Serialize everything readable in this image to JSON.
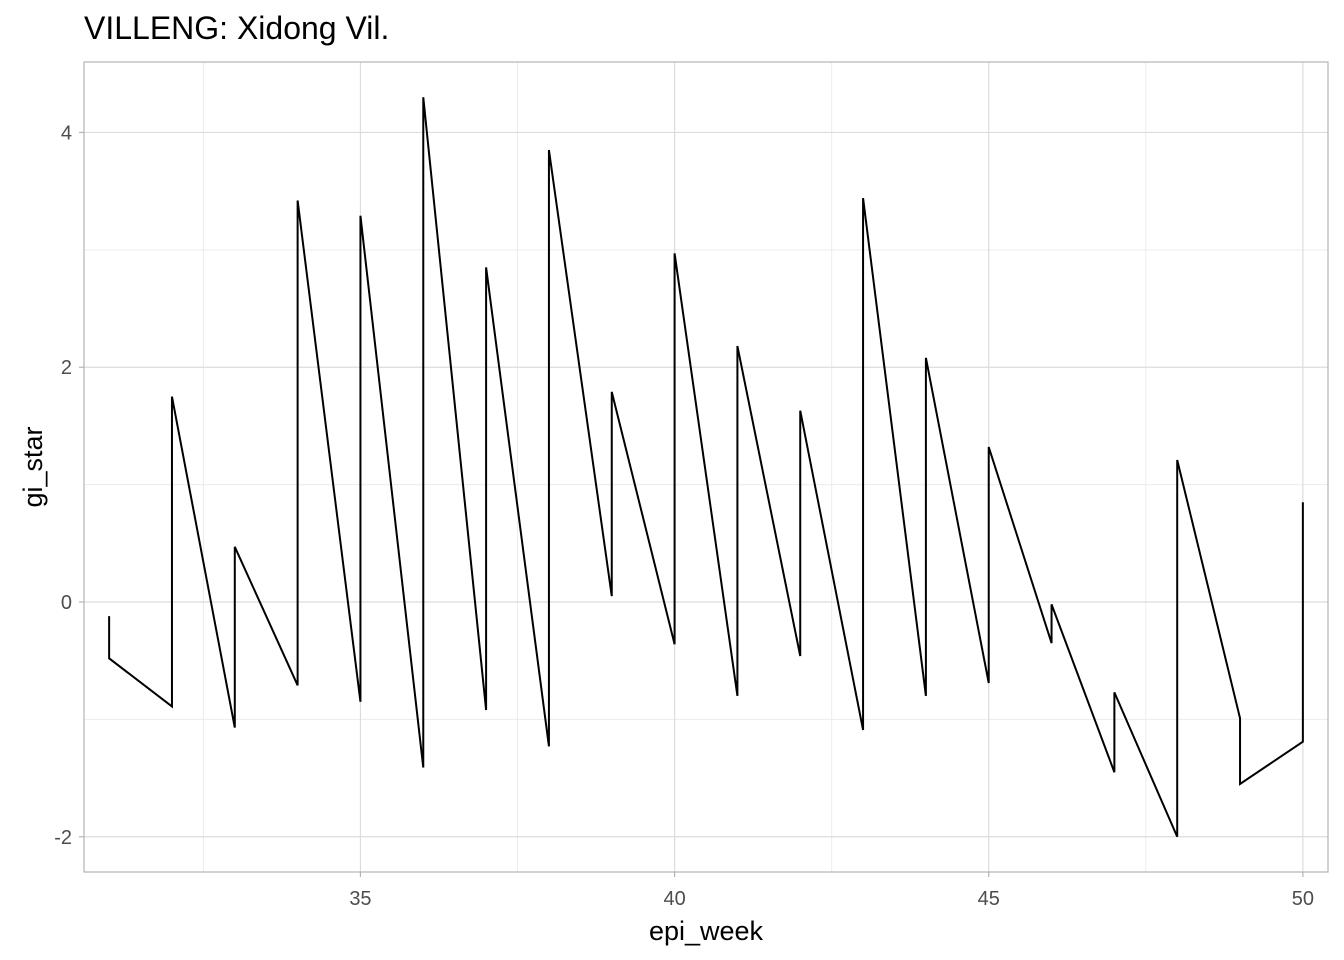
{
  "chart_data": {
    "type": "line",
    "title": "VILLENG: Xidong Vil.",
    "xlabel": "epi_week",
    "ylabel": "gi_star",
    "xlim": [
      30.6,
      50.4
    ],
    "ylim": [
      -2.3,
      4.6
    ],
    "x_ticks": [
      35,
      40,
      45,
      50
    ],
    "x_tick_labels": [
      "35",
      "40",
      "45",
      "50"
    ],
    "y_ticks": [
      -2,
      0,
      2,
      4
    ],
    "y_tick_labels": [
      "-2",
      "0",
      "2",
      "4"
    ],
    "x_minor_ticks": [
      32.5,
      37.5,
      42.5,
      47.5
    ],
    "y_minor_ticks": [
      -1,
      1,
      3
    ],
    "grid": true,
    "line_color": "#000000",
    "series": [
      {
        "points": [
          [
            31,
            -0.12
          ],
          [
            31,
            -0.48
          ],
          [
            32,
            -0.89
          ],
          [
            32,
            1.75
          ],
          [
            33,
            -1.07
          ],
          [
            33,
            0.47
          ],
          [
            34,
            -0.71
          ],
          [
            34,
            3.42
          ],
          [
            35,
            -0.85
          ],
          [
            35,
            3.29
          ],
          [
            36,
            -1.41
          ],
          [
            36,
            4.3
          ],
          [
            37,
            -0.92
          ],
          [
            37,
            2.85
          ],
          [
            38,
            -1.23
          ],
          [
            38,
            3.85
          ],
          [
            39,
            0.05
          ],
          [
            39,
            1.79
          ],
          [
            40,
            -0.36
          ],
          [
            40,
            2.97
          ],
          [
            41,
            -0.8
          ],
          [
            41,
            2.18
          ],
          [
            42,
            -0.46
          ],
          [
            42,
            1.63
          ],
          [
            43,
            -1.09
          ],
          [
            43,
            3.44
          ],
          [
            44,
            -0.8
          ],
          [
            44,
            2.08
          ],
          [
            45,
            -0.69
          ],
          [
            45,
            1.32
          ],
          [
            46,
            -0.35
          ],
          [
            46,
            -0.02
          ],
          [
            47,
            -1.45
          ],
          [
            47,
            -0.77
          ],
          [
            48,
            -2.0
          ],
          [
            48,
            1.21
          ],
          [
            49,
            -0.99
          ],
          [
            49,
            -1.55
          ],
          [
            50,
            -1.19
          ],
          [
            50,
            0.85
          ]
        ]
      }
    ]
  }
}
